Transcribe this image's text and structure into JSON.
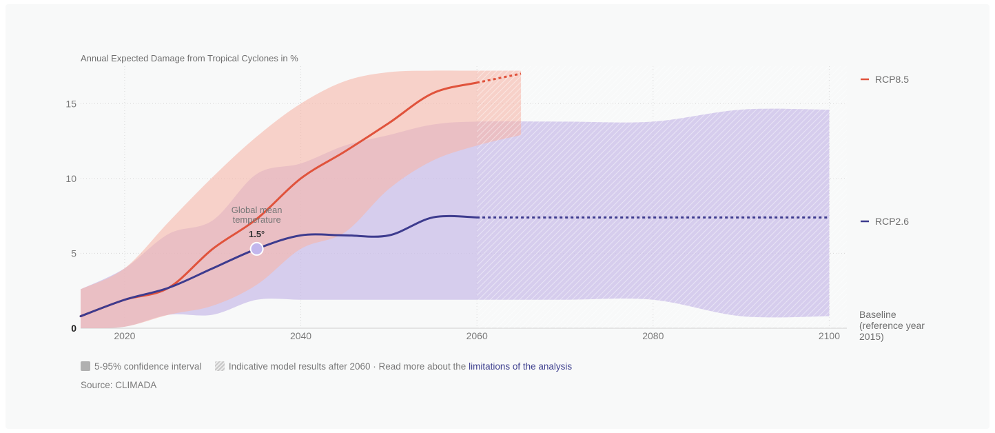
{
  "chart_data": {
    "type": "line",
    "title": "Annual Expected Damage from Tropical Cyclones in %",
    "xlim": [
      2015,
      2102
    ],
    "ylim": [
      0,
      17.5
    ],
    "x_ticks": [
      "2020",
      "2040",
      "2060",
      "2080",
      "2100"
    ],
    "y_ticks": [
      "0",
      "5",
      "10",
      "15"
    ],
    "grid": "dotted vertical and horizontal",
    "projection_cutoff": 2060,
    "series": [
      {
        "name": "RCP8.5",
        "color": "#e0533c",
        "band_color": "#f6b5a8",
        "x": [
          2015,
          2020,
          2025,
          2030,
          2035,
          2040,
          2045,
          2050,
          2055,
          2060,
          2065
        ],
        "values": [
          0.8,
          1.9,
          2.7,
          5.3,
          7.3,
          10.0,
          11.8,
          13.7,
          15.7,
          16.4,
          17.0
        ],
        "lower": [
          0.0,
          0.1,
          0.9,
          1.5,
          2.9,
          5.3,
          6.4,
          9.3,
          11.2,
          12.2,
          12.9
        ],
        "upper": [
          2.6,
          4.0,
          7.1,
          10.1,
          12.8,
          15.0,
          16.5,
          17.1,
          17.2,
          17.2,
          17.2
        ],
        "dashed_after": 2060
      },
      {
        "name": "RCP2.6",
        "color": "#3d3b8e",
        "band_color": "#cbbde8",
        "x": [
          2015,
          2020,
          2025,
          2030,
          2035,
          2040,
          2045,
          2050,
          2055,
          2060,
          2070,
          2080,
          2090,
          2100
        ],
        "values": [
          0.8,
          1.9,
          2.7,
          4.0,
          5.3,
          6.2,
          6.2,
          6.2,
          7.4,
          7.4,
          7.4,
          7.4,
          7.4,
          7.4
        ],
        "lower": [
          0.0,
          0.1,
          0.9,
          0.9,
          1.9,
          1.9,
          1.9,
          1.9,
          1.9,
          1.9,
          1.9,
          1.9,
          0.8,
          0.8
        ],
        "upper": [
          2.6,
          4.0,
          6.3,
          7.2,
          10.3,
          11.0,
          12.2,
          12.9,
          13.6,
          13.8,
          13.8,
          13.8,
          14.6,
          14.6
        ],
        "dashed_after": 2060
      }
    ],
    "legend": [
      "RCP8.5",
      "RCP2.6"
    ],
    "baseline_label": "Baseline (reference year 2015)",
    "annotation": {
      "text_line1": "Global mean",
      "text_line2": "temperature",
      "value": "1.5°",
      "x": 2035,
      "y": 5.3
    }
  },
  "footer": {
    "ci_label": "5-95% confidence interval",
    "hatch_label": "Indicative model results after 2060 · Read more about the",
    "link_label": "limitations of the analysis",
    "source": "Source: CLIMADA"
  }
}
